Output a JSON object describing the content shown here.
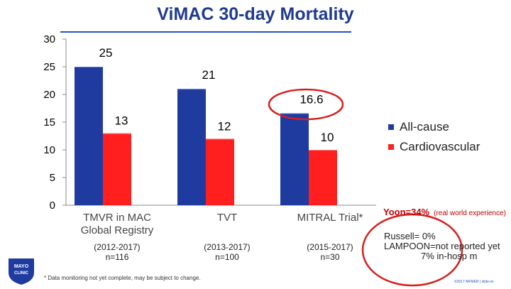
{
  "title": "ViMAC 30-day Mortality",
  "chart_data": {
    "type": "bar",
    "categories": [
      "TMVR in MAC Global Registry",
      "TVT",
      "MITRAL Trial*"
    ],
    "category_subtitles": [
      "(2012-2017) n=116",
      "(2013-2017) n=100",
      "(2015-2017) n=30"
    ],
    "series": [
      {
        "name": "All-cause",
        "color": "#1f3ba0",
        "values": [
          25,
          21,
          16.6
        ]
      },
      {
        "name": "Cardiovascular",
        "color": "#ff1f1f",
        "values": [
          13,
          12,
          10
        ]
      }
    ],
    "ylim": [
      0,
      30
    ],
    "yticks": [
      "0",
      "5",
      "10",
      "15",
      "20",
      "25",
      "30"
    ],
    "data_labels": [
      [
        "25",
        "21",
        "16.6"
      ],
      [
        "13",
        "12",
        "10"
      ]
    ],
    "legend": "right"
  },
  "legend": {
    "all_cause": "All-cause",
    "cardio": "Cardiovascular"
  },
  "categories_text": {
    "c1_line1": "TMVR in MAC",
    "c1_line2": "Global Registry",
    "c1_sub1": "(2012-2017)",
    "c1_sub2": "n=116",
    "c2_line1": "TVT",
    "c2_sub1": "(2013-2017)",
    "c2_sub2": "n=100",
    "c3_line1": "MITRAL Trial*",
    "c3_sub1": "(2015-2017)",
    "c3_sub2": "n=30"
  },
  "notes": {
    "yoon": "Yoon=34%",
    "yoon_detail": "(real world experience)",
    "russell": "Russell= 0%",
    "lampoon": "LAMPOON=not reported yet",
    "lampoon2": "7% in-hosp m"
  },
  "footnote": "* Data monitoring not yet complete, may be subject to change.",
  "logo": {
    "line1": "MAYO",
    "line2": "CLINIC"
  },
  "credit": "©2017 MFMER | slide-xx"
}
